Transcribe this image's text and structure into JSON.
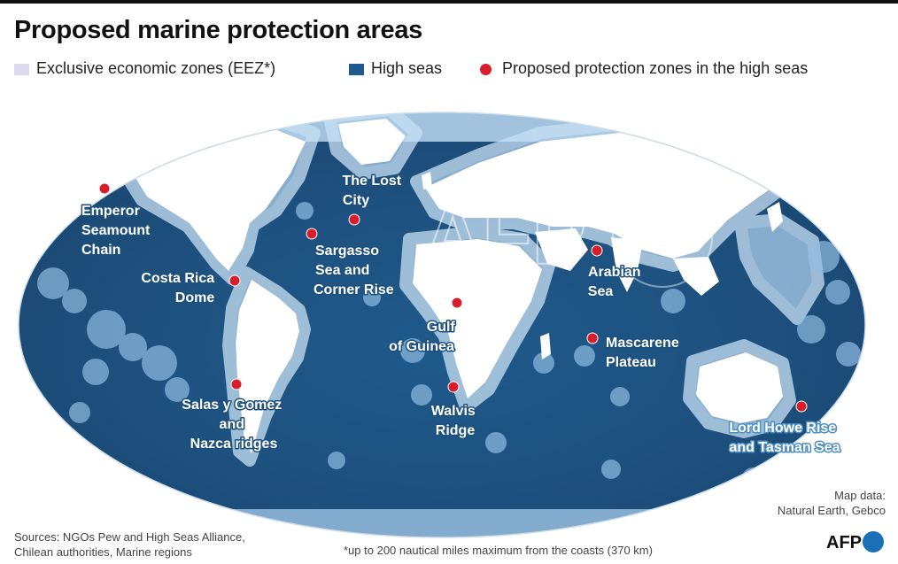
{
  "title": "Proposed marine protection areas",
  "legend": {
    "eez": {
      "label": "Exclusive economic zones (EEZ*)",
      "color": "#dcd8ee"
    },
    "high_seas": {
      "label": "High seas",
      "color": "#1f5a8c"
    },
    "proposed": {
      "label": "Proposed protection zones in the high seas",
      "color": "#d81e2a"
    }
  },
  "zones": [
    {
      "id": "emperor",
      "lines": [
        "Emperor",
        "Seamount",
        "Chain"
      ]
    },
    {
      "id": "costa-rica",
      "lines": [
        "Costa Rica",
        "Dome"
      ]
    },
    {
      "id": "lost-city",
      "lines": [
        "The Lost",
        "City"
      ]
    },
    {
      "id": "sargasso",
      "lines": [
        "Sargasso",
        "Sea and",
        "Corner Rise"
      ]
    },
    {
      "id": "gulf-guinea",
      "lines": [
        "Gulf",
        "of Guinea"
      ]
    },
    {
      "id": "walvis",
      "lines": [
        "Walvis",
        "Ridge"
      ]
    },
    {
      "id": "arabian",
      "lines": [
        "Arabian",
        "Sea"
      ]
    },
    {
      "id": "mascarene",
      "lines": [
        "Mascarene",
        "Plateau"
      ]
    },
    {
      "id": "salas",
      "lines": [
        "Salas y Gomez",
        "and",
        "Nazca ridges"
      ]
    },
    {
      "id": "lord-howe",
      "lines": [
        "Lord Howe Rise",
        "and Tasman Sea"
      ]
    }
  ],
  "watermark": "AFP",
  "map_data": {
    "line1": "Map data:",
    "line2": "Natural Earth, Gebco"
  },
  "sources": {
    "line1": "Sources:  NGOs Pew and High Seas Alliance,",
    "line2": "Chilean authorities, Marine regions"
  },
  "footnote": "*up to  200 nautical miles maximum from the coasts (370 km)",
  "logo": "AFP"
}
